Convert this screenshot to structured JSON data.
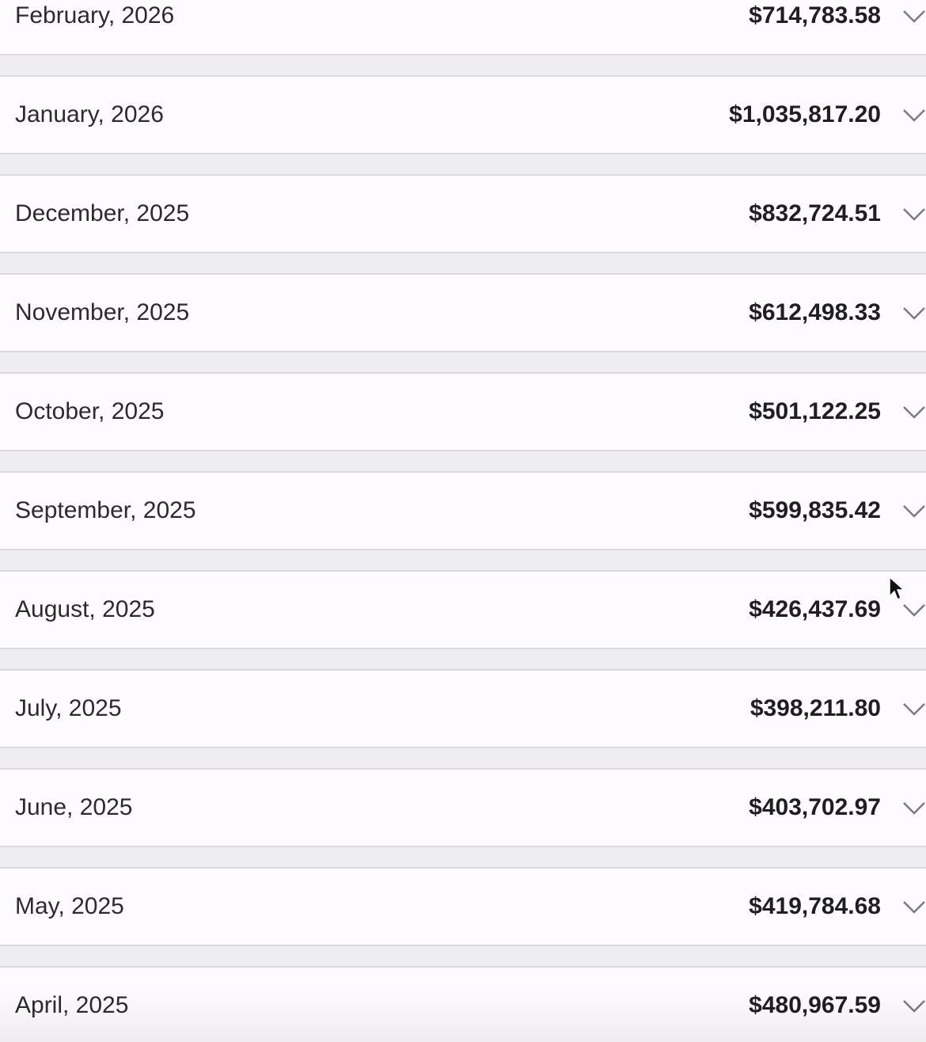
{
  "rows": [
    {
      "month": "February, 2026",
      "amount": "$714,783.58"
    },
    {
      "month": "January, 2026",
      "amount": "$1,035,817.20"
    },
    {
      "month": "December, 2025",
      "amount": "$832,724.51"
    },
    {
      "month": "November, 2025",
      "amount": "$612,498.33"
    },
    {
      "month": "October, 2025",
      "amount": "$501,122.25"
    },
    {
      "month": "September, 2025",
      "amount": "$599,835.42"
    },
    {
      "month": "August, 2025",
      "amount": "$426,437.69"
    },
    {
      "month": "July, 2025",
      "amount": "$398,211.80"
    },
    {
      "month": "June, 2025",
      "amount": "$403,702.97"
    },
    {
      "month": "May, 2025",
      "amount": "$419,784.68"
    },
    {
      "month": "April, 2025",
      "amount": "$480,967.59"
    }
  ],
  "icons": {
    "expand": "chevron-down-icon",
    "pointer": "mouse-cursor-icon"
  },
  "colors": {
    "row_background": "#fdfbfd",
    "page_background": "#eeedf0",
    "divider": "#dcdadf",
    "chevron": "#7a7a80"
  }
}
